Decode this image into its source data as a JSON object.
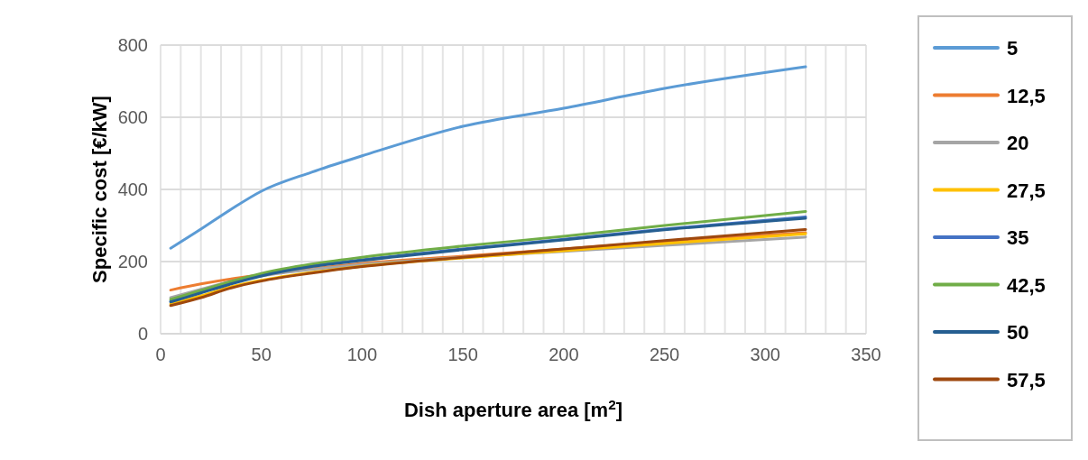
{
  "chart_data": {
    "type": "line",
    "xlabel": "Dish aperture area [m$^{2}$]",
    "ylabel": "Specific cost [€/kW]",
    "x": [
      5,
      20,
      35,
      50,
      75,
      100,
      150,
      200,
      250,
      320
    ],
    "xlim": [
      0,
      350
    ],
    "xticks": [
      0,
      {
        "value": 10,
        "label": null
      },
      {
        "value": 20,
        "label": null
      },
      {
        "value": 30,
        "label": null
      },
      {
        "value": 40,
        "label": null
      },
      50,
      {
        "value": 60,
        "label": null
      },
      {
        "value": 70,
        "label": null
      },
      {
        "value": 80,
        "label": null
      },
      {
        "value": 90,
        "label": null
      },
      100,
      {
        "value": 110,
        "label": null
      },
      {
        "value": 120,
        "label": null
      },
      {
        "value": 130,
        "label": null
      },
      {
        "value": 140,
        "label": null
      },
      150,
      {
        "value": 160,
        "label": null
      },
      {
        "value": 170,
        "label": null
      },
      {
        "value": 180,
        "label": null
      },
      {
        "value": 190,
        "label": null
      },
      200,
      {
        "value": 210,
        "label": null
      },
      {
        "value": 220,
        "label": null
      },
      {
        "value": 230,
        "label": null
      },
      {
        "value": 240,
        "label": null
      },
      250,
      {
        "value": 260,
        "label": null
      },
      {
        "value": 270,
        "label": null
      },
      {
        "value": 280,
        "label": null
      },
      {
        "value": 290,
        "label": null
      },
      300,
      {
        "value": 310,
        "label": null
      },
      {
        "value": 320,
        "label": null
      },
      {
        "value": 330,
        "label": null
      },
      {
        "value": 340,
        "label": null
      },
      350
    ],
    "ylim": [
      0,
      800
    ],
    "yticks": [
      0,
      200,
      400,
      600,
      800
    ],
    "grid": true,
    "legend": "right",
    "marker": "none",
    "line_style": "solid",
    "series": [
      {
        "name": "5",
        "color": "#5b9bd5",
        "values": [
          237,
          290,
          345,
          395,
          448,
          493,
          575,
          625,
          680,
          740
        ]
      },
      {
        "name": "12,5",
        "color": "#ed7d31",
        "values": [
          121,
          138,
          152,
          163,
          180,
          195,
          215,
          235,
          255,
          280
        ]
      },
      {
        "name": "20",
        "color": "#a5a5a5",
        "values": [
          100,
          123,
          145,
          160,
          178,
          192,
          212,
          228,
          245,
          268
        ]
      },
      {
        "name": "27,5",
        "color": "#ffc000",
        "values": [
          82,
          105,
          130,
          148,
          170,
          187,
          210,
          230,
          250,
          277
        ]
      },
      {
        "name": "35",
        "color": "#4472c4",
        "values": [
          90,
          115,
          140,
          162,
          188,
          205,
          235,
          262,
          290,
          324
        ]
      },
      {
        "name": "42,5",
        "color": "#70ad47",
        "values": [
          95,
          120,
          145,
          167,
          193,
          212,
          243,
          270,
          300,
          339
        ]
      },
      {
        "name": "50",
        "color": "#255e91",
        "values": [
          88,
          113,
          138,
          160,
          186,
          203,
          233,
          260,
          288,
          320
        ]
      },
      {
        "name": "57,5",
        "color": "#9e480e",
        "values": [
          78,
          100,
          127,
          146,
          168,
          186,
          212,
          235,
          258,
          289
        ]
      }
    ]
  }
}
